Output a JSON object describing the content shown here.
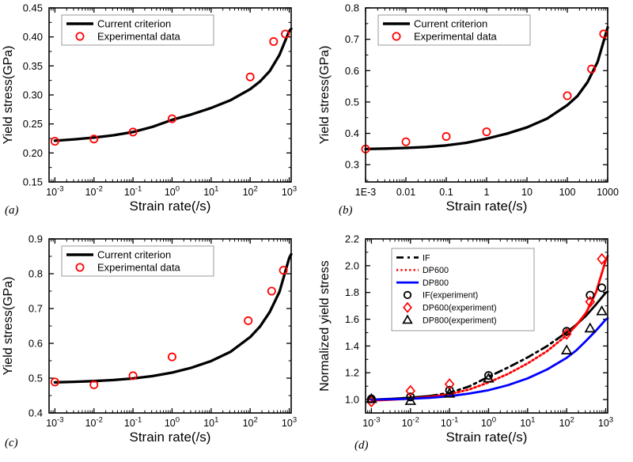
{
  "figure": {
    "description": "Four-panel figure comparing a yield-stress criterion with experimental data versus strain rate",
    "x_axis_note": "x values stored as log10(strain rate in 1/s)"
  },
  "chart_data": [
    {
      "type": "line+scatter",
      "panel_label": "(a)",
      "xlabel": "Strain rate(/s)",
      "ylabel": "Yield stress(GPa)",
      "x_scale": "log10",
      "xlim": [
        -3.15,
        3.05
      ],
      "ylim": [
        0.15,
        0.45
      ],
      "yticks": [
        0.15,
        0.2,
        0.25,
        0.3,
        0.35,
        0.4,
        0.45
      ],
      "ytick_labels": [
        "0.15",
        "0.20",
        "0.25",
        "0.30",
        "0.35",
        "0.40",
        "0.45"
      ],
      "y_minor_step": 0.025,
      "xticks": [
        -3,
        -2,
        -1,
        0,
        1,
        2,
        3
      ],
      "xtick_labels": [
        "10^-3",
        "10^-2",
        "10^-1",
        "10^0",
        "10^1",
        "10^2",
        "10^3"
      ],
      "legend": [
        {
          "label": "Current criterion",
          "kind": "line",
          "color": "#000000",
          "dash": "solid"
        },
        {
          "label": "Experimental data",
          "kind": "marker",
          "marker": "circle",
          "color": "#ff0000"
        }
      ],
      "series": [
        {
          "name": "Current criterion",
          "kind": "line",
          "color": "#000000",
          "x": [
            -3,
            -2.5,
            -2,
            -1.5,
            -1,
            -0.5,
            0,
            0.5,
            1,
            1.5,
            2,
            2.25,
            2.5,
            2.75,
            3,
            3.05
          ],
          "y": [
            0.221,
            0.2235,
            0.2265,
            0.2305,
            0.236,
            0.245,
            0.257,
            0.2665,
            0.2775,
            0.291,
            0.31,
            0.323,
            0.341,
            0.369,
            0.41,
            0.414
          ],
          "dash_segments": [
            {
              "from": -3,
              "to": 3.05,
              "dash": "solid"
            }
          ]
        },
        {
          "name": "Experimental data",
          "kind": "scatter",
          "marker": "circle",
          "color": "#ff0000",
          "strain_rates": [
            0.001,
            0.01,
            0.1,
            1,
            100,
            400,
            800
          ],
          "x": [
            -3,
            -2,
            -1,
            0,
            2,
            2.6,
            2.9
          ],
          "y": [
            0.22,
            0.224,
            0.236,
            0.259,
            0.331,
            0.392,
            0.405
          ]
        }
      ]
    },
    {
      "type": "line+scatter",
      "panel_label": "(b)",
      "xlabel": "Strain rate(/s)",
      "ylabel": "Yield stress(GPa)",
      "x_scale": "log10",
      "xlim": [
        -3.0,
        3.0
      ],
      "ylim": [
        0.245,
        0.8
      ],
      "yticks": [
        0.3,
        0.4,
        0.5,
        0.6,
        0.7,
        0.8
      ],
      "ytick_labels": [
        "0.3",
        "0.4",
        "0.5",
        "0.6",
        "0.7",
        "0.8"
      ],
      "y_minor_step": 0.05,
      "xticks": [
        -3,
        -2,
        -1,
        0,
        1,
        2,
        3
      ],
      "xtick_labels": [
        "1E-3",
        "0.01",
        "0.1",
        "1",
        "10",
        "100",
        "1000"
      ],
      "legend": [
        {
          "label": "Current criterion",
          "kind": "line",
          "color": "#000000",
          "dash": "solid"
        },
        {
          "label": "Experimental data",
          "kind": "marker",
          "marker": "circle",
          "color": "#ff0000"
        }
      ],
      "series": [
        {
          "name": "Current criterion",
          "kind": "line",
          "color": "#000000",
          "x": [
            -3,
            -2.5,
            -2,
            -1.5,
            -1,
            -0.5,
            0,
            0.5,
            1,
            1.5,
            2,
            2.25,
            2.5,
            2.75,
            3
          ],
          "y": [
            0.35,
            0.3515,
            0.3535,
            0.3565,
            0.3615,
            0.37,
            0.383,
            0.399,
            0.419,
            0.447,
            0.49,
            0.519,
            0.563,
            0.628,
            0.738
          ],
          "dash_segments": [
            {
              "from": -3,
              "to": 3,
              "dash": "solid"
            }
          ]
        },
        {
          "name": "Experimental data",
          "kind": "scatter",
          "marker": "circle",
          "color": "#ff0000",
          "strain_rates": [
            0.001,
            0.01,
            0.1,
            1,
            100,
            400,
            800
          ],
          "x": [
            -3,
            -2,
            -1,
            0,
            2,
            2.6,
            2.9
          ],
          "y": [
            0.35,
            0.373,
            0.39,
            0.405,
            0.52,
            0.605,
            0.717
          ]
        }
      ]
    },
    {
      "type": "line+scatter",
      "panel_label": "(c)",
      "xlabel": "Strain rate(/s)",
      "ylabel": "Yield stress(GPa)",
      "x_scale": "log10",
      "xlim": [
        -3.15,
        3.05
      ],
      "ylim": [
        0.4,
        0.9
      ],
      "yticks": [
        0.4,
        0.5,
        0.6,
        0.7,
        0.8,
        0.9
      ],
      "ytick_labels": [
        "0.4",
        "0.5",
        "0.6",
        "0.7",
        "0.8",
        "0.9"
      ],
      "y_minor_step": 0.05,
      "xticks": [
        -3,
        -2,
        -1,
        0,
        1,
        2,
        3
      ],
      "xtick_labels": [
        "10^-3",
        "10^-2",
        "10^-1",
        "10^0",
        "10^1",
        "10^2",
        "10^3"
      ],
      "legend": [
        {
          "label": "Current criterion",
          "kind": "line",
          "color": "#000000",
          "dash": "solid"
        },
        {
          "label": "Experimental data",
          "kind": "marker",
          "marker": "circle",
          "color": "#ff0000"
        }
      ],
      "series": [
        {
          "name": "Current criterion",
          "kind": "line",
          "color": "#000000",
          "x": [
            -3,
            -2.5,
            -2,
            -1.5,
            -1,
            -0.5,
            0,
            0.5,
            1,
            1.5,
            2,
            2.25,
            2.5,
            2.75,
            3,
            3.05
          ],
          "y": [
            0.488,
            0.4895,
            0.4915,
            0.4945,
            0.499,
            0.506,
            0.516,
            0.53,
            0.549,
            0.576,
            0.618,
            0.648,
            0.69,
            0.748,
            0.845,
            0.856
          ],
          "dash_segments": [
            {
              "from": -3,
              "to": 3.05,
              "dash": "solid"
            }
          ]
        },
        {
          "name": "Experimental data",
          "kind": "scatter",
          "marker": "circle",
          "color": "#ff0000",
          "strain_rates": [
            0.001,
            0.01,
            0.1,
            1,
            90,
            350,
            700
          ],
          "x": [
            -3,
            -2,
            -1,
            0,
            1.95,
            2.55,
            2.85
          ],
          "y": [
            0.489,
            0.481,
            0.507,
            0.561,
            0.665,
            0.75,
            0.81
          ]
        }
      ]
    },
    {
      "type": "line+scatter",
      "panel_label": "(d)",
      "xlabel": "Strain rate(/s)",
      "ylabel": "Normalized yield stress",
      "x_scale": "log10",
      "xlim": [
        -3.15,
        3.05
      ],
      "ylim": [
        0.9,
        2.2
      ],
      "yticks": [
        1.0,
        1.2,
        1.4,
        1.6,
        1.8,
        2.0,
        2.2
      ],
      "ytick_labels": [
        "1.0",
        "1.2",
        "1.4",
        "1.6",
        "1.8",
        "2.0",
        "2.2"
      ],
      "y_minor_step": 0.1,
      "xticks": [
        -3,
        -2,
        -1,
        0,
        1,
        2,
        3
      ],
      "xtick_labels": [
        "10^-3",
        "10^-2",
        "10^-1",
        "10^0",
        "10^1",
        "10^2",
        "10^3"
      ],
      "legend": [
        {
          "label": "IF",
          "kind": "line",
          "color": "#000000",
          "dash": "dashed"
        },
        {
          "label": "DP600",
          "kind": "line",
          "color": "#ff0000",
          "dash": "dotted"
        },
        {
          "label": "DP800",
          "kind": "line",
          "color": "#0000ff",
          "dash": "solid"
        },
        {
          "label": "IF(experiment)",
          "kind": "marker",
          "marker": "circle",
          "color": "#000000"
        },
        {
          "label": "DP600(experiment)",
          "kind": "marker",
          "marker": "diamond",
          "color": "#ff0000"
        },
        {
          "label": "DP800(experiment)",
          "kind": "marker",
          "marker": "triangle",
          "color": "#000000"
        }
      ],
      "series": [
        {
          "name": "IF",
          "kind": "line",
          "color": "#000000",
          "x": [
            -3,
            -2.5,
            -2,
            -1.5,
            -1,
            -0.5,
            0,
            0.5,
            1,
            1.5,
            2,
            2.25,
            2.5,
            2.75,
            3,
            3.05
          ],
          "y": [
            1.0,
            1.006,
            1.014,
            1.027,
            1.05,
            1.098,
            1.17,
            1.24,
            1.315,
            1.4,
            1.502,
            1.56,
            1.628,
            1.71,
            1.798,
            1.806
          ],
          "dash_segments": [
            {
              "from": -3,
              "to": -1.5,
              "dash": "solid"
            },
            {
              "from": -1.5,
              "to": 2,
              "dash": "dashed"
            },
            {
              "from": 2,
              "to": 3.05,
              "dash": "solid"
            }
          ]
        },
        {
          "name": "DP600",
          "kind": "line",
          "color": "#ff0000",
          "x": [
            -3,
            -2.5,
            -2,
            -1.5,
            -1,
            -0.5,
            0,
            0.5,
            1,
            1.5,
            2,
            2.25,
            2.5,
            2.75,
            3,
            3.05
          ],
          "y": [
            0.993,
            0.999,
            1.007,
            1.02,
            1.04,
            1.075,
            1.128,
            1.192,
            1.27,
            1.362,
            1.48,
            1.556,
            1.65,
            1.8,
            2.04,
            2.072
          ],
          "dash_segments": [
            {
              "from": -3,
              "to": -1,
              "dash": "solid"
            },
            {
              "from": -1,
              "to": 2,
              "dash": "dotted"
            },
            {
              "from": 2,
              "to": 3.05,
              "dash": "solid"
            }
          ]
        },
        {
          "name": "DP800",
          "kind": "line",
          "color": "#0000ff",
          "x": [
            -3,
            -2.5,
            -2,
            -1.5,
            -1,
            -0.5,
            0,
            0.5,
            1,
            1.5,
            2,
            2.25,
            2.5,
            2.75,
            3,
            3.05
          ],
          "y": [
            1.0,
            1.002,
            1.006,
            1.013,
            1.025,
            1.045,
            1.07,
            1.108,
            1.158,
            1.225,
            1.312,
            1.368,
            1.44,
            1.515,
            1.597,
            1.607
          ],
          "dash_segments": [
            {
              "from": -3,
              "to": 3.05,
              "dash": "solid"
            }
          ]
        },
        {
          "name": "IF(experiment)",
          "kind": "scatter",
          "marker": "circle",
          "color": "#000000",
          "strain_rates": [
            0.001,
            0.01,
            0.1,
            1,
            100,
            400,
            800
          ],
          "x": [
            -3,
            -2,
            -1,
            0,
            2,
            2.6,
            2.9
          ],
          "y": [
            1.005,
            1.02,
            1.07,
            1.18,
            1.51,
            1.78,
            1.835
          ]
        },
        {
          "name": "DP600(experiment)",
          "kind": "scatter",
          "marker": "diamond",
          "color": "#ff0000",
          "strain_rates": [
            0.001,
            0.01,
            0.1,
            100,
            400,
            800
          ],
          "x": [
            -3,
            -2,
            -1,
            2,
            2.6,
            2.9
          ],
          "y": [
            0.985,
            1.065,
            1.115,
            1.49,
            1.73,
            2.05
          ]
        },
        {
          "name": "DP800(experiment)",
          "kind": "scatter",
          "marker": "triangle",
          "color": "#000000",
          "strain_rates": [
            0.001,
            0.01,
            0.1,
            1,
            100,
            400,
            800
          ],
          "x": [
            -3,
            -2,
            -1,
            0,
            2,
            2.6,
            2.9
          ],
          "y": [
            1.005,
            0.99,
            1.045,
            1.158,
            1.368,
            1.532,
            1.66
          ]
        }
      ]
    }
  ]
}
